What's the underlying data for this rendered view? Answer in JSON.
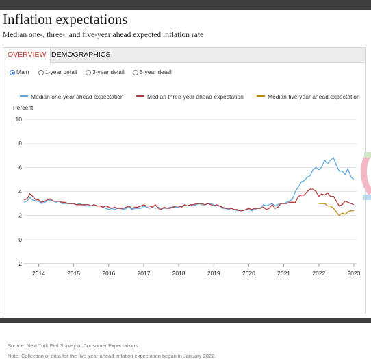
{
  "page": {
    "title": "Inflation expectations",
    "subtitle": "Median one-, three-, and five-year ahead expected inflation rate"
  },
  "tabs": [
    {
      "label": "OVERVIEW",
      "active": true
    },
    {
      "label": "DEMOGRAPHICS",
      "active": false
    }
  ],
  "radios": [
    {
      "label": "Main",
      "checked": true
    },
    {
      "label": "1-year detail",
      "checked": false
    },
    {
      "label": "3-year detail",
      "checked": false
    },
    {
      "label": "5-year detail",
      "checked": false
    }
  ],
  "colors": {
    "one_year": "#5aa8dc",
    "three_year": "#b23a3a",
    "five_year": "#b8860b",
    "grid": "#e3e3e3",
    "active_tab": "#c0392b"
  },
  "footer": {
    "source": "Source: New York Fed Survey of Consumer Expectations",
    "note": "Note: Collection of data for the five-year-ahead inflation expectation began in January 2022."
  },
  "chart_data": {
    "type": "line",
    "ylabel": "Percent",
    "ylim": [
      -2,
      10
    ],
    "yticks": [
      -2,
      0,
      2,
      4,
      6,
      8,
      10
    ],
    "xticks": [
      "2014",
      "2015",
      "2016",
      "2017",
      "2018",
      "2019",
      "2020",
      "2021",
      "2022",
      "2023"
    ],
    "xlim": [
      2013.58,
      2023.08
    ],
    "grid": true,
    "legend": "top",
    "series": [
      {
        "name": "Median one-year ahead expectation",
        "color_key": "one_year",
        "points": [
          [
            2013.58,
            3.1
          ],
          [
            2013.67,
            3.2
          ],
          [
            2013.75,
            3.5
          ],
          [
            2013.83,
            3.3
          ],
          [
            2013.92,
            3.2
          ],
          [
            2014.0,
            3.2
          ],
          [
            2014.08,
            3.0
          ],
          [
            2014.17,
            3.1
          ],
          [
            2014.25,
            3.2
          ],
          [
            2014.33,
            3.3
          ],
          [
            2014.42,
            3.2
          ],
          [
            2014.5,
            3.1
          ],
          [
            2014.58,
            3.2
          ],
          [
            2014.67,
            3.0
          ],
          [
            2014.75,
            3.0
          ],
          [
            2014.83,
            3.0
          ],
          [
            2014.92,
            3.0
          ],
          [
            2015.0,
            3.0
          ],
          [
            2015.08,
            2.9
          ],
          [
            2015.17,
            3.0
          ],
          [
            2015.25,
            2.9
          ],
          [
            2015.33,
            2.8
          ],
          [
            2015.42,
            2.8
          ],
          [
            2015.5,
            2.8
          ],
          [
            2015.58,
            2.9
          ],
          [
            2015.67,
            2.8
          ],
          [
            2015.75,
            2.8
          ],
          [
            2015.83,
            2.7
          ],
          [
            2015.92,
            2.6
          ],
          [
            2016.0,
            2.5
          ],
          [
            2016.08,
            2.6
          ],
          [
            2016.17,
            2.5
          ],
          [
            2016.25,
            2.6
          ],
          [
            2016.33,
            2.6
          ],
          [
            2016.42,
            2.5
          ],
          [
            2016.5,
            2.6
          ],
          [
            2016.58,
            2.7
          ],
          [
            2016.67,
            2.5
          ],
          [
            2016.75,
            2.6
          ],
          [
            2016.83,
            2.6
          ],
          [
            2016.92,
            2.6
          ],
          [
            2017.0,
            2.8
          ],
          [
            2017.08,
            2.7
          ],
          [
            2017.17,
            2.6
          ],
          [
            2017.25,
            2.7
          ],
          [
            2017.33,
            2.6
          ],
          [
            2017.42,
            2.7
          ],
          [
            2017.5,
            2.6
          ],
          [
            2017.58,
            2.6
          ],
          [
            2017.67,
            2.6
          ],
          [
            2017.75,
            2.7
          ],
          [
            2017.83,
            2.7
          ],
          [
            2017.92,
            2.7
          ],
          [
            2018.0,
            2.7
          ],
          [
            2018.08,
            2.8
          ],
          [
            2018.17,
            2.8
          ],
          [
            2018.25,
            2.8
          ],
          [
            2018.33,
            2.9
          ],
          [
            2018.42,
            2.8
          ],
          [
            2018.5,
            2.9
          ],
          [
            2018.58,
            3.0
          ],
          [
            2018.67,
            2.9
          ],
          [
            2018.75,
            2.9
          ],
          [
            2018.83,
            3.0
          ],
          [
            2018.92,
            3.0
          ],
          [
            2019.0,
            2.9
          ],
          [
            2019.08,
            2.8
          ],
          [
            2019.17,
            2.8
          ],
          [
            2019.25,
            2.6
          ],
          [
            2019.33,
            2.6
          ],
          [
            2019.42,
            2.5
          ],
          [
            2019.5,
            2.6
          ],
          [
            2019.58,
            2.5
          ],
          [
            2019.67,
            2.4
          ],
          [
            2019.75,
            2.4
          ],
          [
            2019.83,
            2.4
          ],
          [
            2019.92,
            2.5
          ],
          [
            2020.0,
            2.5
          ],
          [
            2020.08,
            2.4
          ],
          [
            2020.17,
            2.5
          ],
          [
            2020.25,
            2.6
          ],
          [
            2020.33,
            2.6
          ],
          [
            2020.42,
            2.9
          ],
          [
            2020.5,
            2.8
          ],
          [
            2020.58,
            2.9
          ],
          [
            2020.67,
            3.0
          ],
          [
            2020.75,
            2.8
          ],
          [
            2020.83,
            2.9
          ],
          [
            2020.92,
            3.0
          ],
          [
            2021.0,
            3.0
          ],
          [
            2021.08,
            3.1
          ],
          [
            2021.17,
            3.2
          ],
          [
            2021.25,
            3.4
          ],
          [
            2021.33,
            4.0
          ],
          [
            2021.42,
            4.4
          ],
          [
            2021.5,
            4.8
          ],
          [
            2021.58,
            4.9
          ],
          [
            2021.67,
            5.2
          ],
          [
            2021.75,
            5.3
          ],
          [
            2021.83,
            5.8
          ],
          [
            2021.92,
            6.0
          ],
          [
            2022.0,
            5.8
          ],
          [
            2022.08,
            6.0
          ],
          [
            2022.17,
            6.6
          ],
          [
            2022.25,
            6.3
          ],
          [
            2022.33,
            6.6
          ],
          [
            2022.42,
            6.8
          ],
          [
            2022.5,
            6.2
          ],
          [
            2022.58,
            5.7
          ],
          [
            2022.67,
            5.7
          ],
          [
            2022.75,
            5.4
          ],
          [
            2022.83,
            5.9
          ],
          [
            2022.92,
            5.2
          ],
          [
            2023.0,
            5.0
          ]
        ]
      },
      {
        "name": "Median three-year ahead expectation",
        "color_key": "three_year",
        "points": [
          [
            2013.58,
            3.3
          ],
          [
            2013.67,
            3.4
          ],
          [
            2013.75,
            3.8
          ],
          [
            2013.83,
            3.6
          ],
          [
            2013.92,
            3.3
          ],
          [
            2014.0,
            3.3
          ],
          [
            2014.08,
            3.1
          ],
          [
            2014.17,
            3.2
          ],
          [
            2014.25,
            3.3
          ],
          [
            2014.33,
            3.4
          ],
          [
            2014.42,
            3.2
          ],
          [
            2014.5,
            3.2
          ],
          [
            2014.58,
            3.2
          ],
          [
            2014.67,
            3.1
          ],
          [
            2014.75,
            3.1
          ],
          [
            2014.83,
            3.0
          ],
          [
            2014.92,
            3.0
          ],
          [
            2015.0,
            3.0
          ],
          [
            2015.08,
            2.9
          ],
          [
            2015.17,
            2.9
          ],
          [
            2015.25,
            2.9
          ],
          [
            2015.33,
            2.9
          ],
          [
            2015.42,
            2.9
          ],
          [
            2015.5,
            2.8
          ],
          [
            2015.58,
            2.9
          ],
          [
            2015.67,
            2.8
          ],
          [
            2015.75,
            2.8
          ],
          [
            2015.83,
            2.7
          ],
          [
            2015.92,
            2.8
          ],
          [
            2016.0,
            2.7
          ],
          [
            2016.08,
            2.6
          ],
          [
            2016.17,
            2.7
          ],
          [
            2016.25,
            2.6
          ],
          [
            2016.33,
            2.6
          ],
          [
            2016.42,
            2.6
          ],
          [
            2016.5,
            2.7
          ],
          [
            2016.58,
            2.8
          ],
          [
            2016.67,
            2.6
          ],
          [
            2016.75,
            2.7
          ],
          [
            2016.83,
            2.7
          ],
          [
            2016.92,
            2.8
          ],
          [
            2017.0,
            2.9
          ],
          [
            2017.08,
            2.8
          ],
          [
            2017.17,
            2.8
          ],
          [
            2017.25,
            2.7
          ],
          [
            2017.33,
            2.9
          ],
          [
            2017.42,
            2.6
          ],
          [
            2017.5,
            2.5
          ],
          [
            2017.58,
            2.7
          ],
          [
            2017.67,
            2.6
          ],
          [
            2017.75,
            2.6
          ],
          [
            2017.83,
            2.7
          ],
          [
            2017.92,
            2.8
          ],
          [
            2018.0,
            2.8
          ],
          [
            2018.08,
            2.7
          ],
          [
            2018.17,
            2.9
          ],
          [
            2018.25,
            2.8
          ],
          [
            2018.33,
            2.9
          ],
          [
            2018.42,
            2.9
          ],
          [
            2018.5,
            3.0
          ],
          [
            2018.58,
            3.0
          ],
          [
            2018.67,
            3.0
          ],
          [
            2018.75,
            2.9
          ],
          [
            2018.83,
            3.0
          ],
          [
            2018.92,
            2.9
          ],
          [
            2019.0,
            2.8
          ],
          [
            2019.08,
            2.9
          ],
          [
            2019.17,
            2.8
          ],
          [
            2019.25,
            2.7
          ],
          [
            2019.33,
            2.6
          ],
          [
            2019.42,
            2.6
          ],
          [
            2019.5,
            2.6
          ],
          [
            2019.58,
            2.5
          ],
          [
            2019.67,
            2.5
          ],
          [
            2019.75,
            2.4
          ],
          [
            2019.83,
            2.4
          ],
          [
            2019.92,
            2.5
          ],
          [
            2020.0,
            2.6
          ],
          [
            2020.08,
            2.5
          ],
          [
            2020.17,
            2.6
          ],
          [
            2020.25,
            2.6
          ],
          [
            2020.33,
            2.6
          ],
          [
            2020.42,
            2.7
          ],
          [
            2020.5,
            2.5
          ],
          [
            2020.58,
            2.6
          ],
          [
            2020.67,
            2.9
          ],
          [
            2020.75,
            2.6
          ],
          [
            2020.83,
            2.7
          ],
          [
            2020.92,
            3.0
          ],
          [
            2021.0,
            3.0
          ],
          [
            2021.08,
            3.0
          ],
          [
            2021.17,
            3.1
          ],
          [
            2021.25,
            3.1
          ],
          [
            2021.33,
            3.1
          ],
          [
            2021.42,
            3.6
          ],
          [
            2021.5,
            3.7
          ],
          [
            2021.58,
            3.7
          ],
          [
            2021.67,
            4.0
          ],
          [
            2021.75,
            4.2
          ],
          [
            2021.83,
            4.2
          ],
          [
            2021.92,
            4.0
          ],
          [
            2022.0,
            3.6
          ],
          [
            2022.08,
            3.8
          ],
          [
            2022.17,
            3.7
          ],
          [
            2022.25,
            3.9
          ],
          [
            2022.33,
            3.6
          ],
          [
            2022.42,
            3.6
          ],
          [
            2022.5,
            3.2
          ],
          [
            2022.58,
            2.8
          ],
          [
            2022.67,
            2.9
          ],
          [
            2022.75,
            3.2
          ],
          [
            2022.83,
            3.1
          ],
          [
            2022.92,
            3.0
          ],
          [
            2023.0,
            2.9
          ]
        ]
      },
      {
        "name": "Median five-year ahead expectation",
        "color_key": "five_year",
        "points": [
          [
            2022.0,
            3.0
          ],
          [
            2022.08,
            3.0
          ],
          [
            2022.17,
            3.0
          ],
          [
            2022.25,
            2.8
          ],
          [
            2022.33,
            2.8
          ],
          [
            2022.42,
            2.6
          ],
          [
            2022.5,
            2.3
          ],
          [
            2022.58,
            2.0
          ],
          [
            2022.67,
            2.2
          ],
          [
            2022.75,
            2.1
          ],
          [
            2022.83,
            2.3
          ],
          [
            2022.92,
            2.4
          ],
          [
            2023.0,
            2.4
          ]
        ]
      }
    ]
  }
}
